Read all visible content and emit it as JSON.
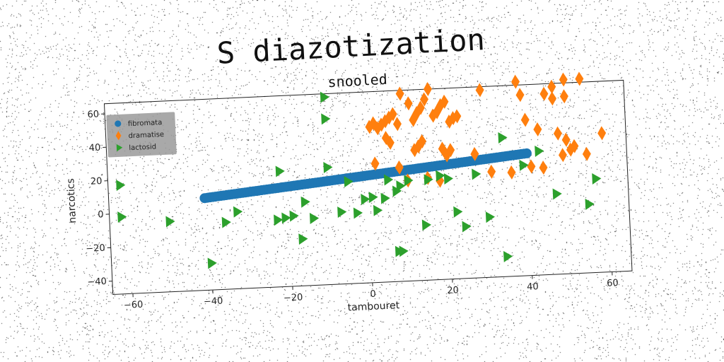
{
  "chart_data": {
    "type": "scatter",
    "title": "S diazotization",
    "subtitle": "snooled",
    "xlabel": "tambouret",
    "ylabel": "narcotics",
    "xlim": [
      -65,
      65
    ],
    "ylim": [
      -48,
      66
    ],
    "xticks": [
      -60,
      -40,
      -20,
      0,
      20,
      40,
      60
    ],
    "yticks": [
      -40,
      -20,
      0,
      20,
      40,
      60
    ],
    "tick_labels_x": [
      "−60",
      "−40",
      "−20",
      "0",
      "20",
      "40",
      "60"
    ],
    "tick_labels_y": [
      "−40",
      "−20",
      "0",
      "20",
      "40",
      "60"
    ],
    "legend": {
      "placement": "top-left",
      "entries": [
        "fibromata",
        "dramatise",
        "lactosid"
      ]
    },
    "colors": {
      "fibromata": "#1f77b4",
      "dramatise": "#ff7f0e",
      "lactosid": "#2ca02c"
    },
    "grid": false,
    "series": [
      {
        "name": "fibromata",
        "marker": "circle",
        "line": {
          "x_start": -41,
          "x_end": 40,
          "y_start": 7,
          "y_end": 25,
          "count": 120
        }
      },
      {
        "name": "dramatise",
        "marker": "thin-diamond",
        "points": [
          [
            1,
            45
          ],
          [
            2,
            47
          ],
          [
            3,
            44
          ],
          [
            4,
            46
          ],
          [
            5,
            48
          ],
          [
            6,
            50
          ],
          [
            7,
            52
          ],
          [
            8,
            46
          ],
          [
            5,
            38
          ],
          [
            6,
            35
          ],
          [
            9,
            64
          ],
          [
            11,
            58
          ],
          [
            12,
            48
          ],
          [
            13,
            52
          ],
          [
            14,
            55
          ],
          [
            15,
            60
          ],
          [
            16,
            66
          ],
          [
            17,
            50
          ],
          [
            18,
            52
          ],
          [
            19,
            56
          ],
          [
            20,
            58
          ],
          [
            21,
            46
          ],
          [
            22,
            48
          ],
          [
            23,
            49
          ],
          [
            12,
            30
          ],
          [
            13,
            32
          ],
          [
            14,
            35
          ],
          [
            19,
            30
          ],
          [
            20,
            26
          ],
          [
            21,
            29
          ],
          [
            2,
            23
          ],
          [
            8,
            20
          ],
          [
            10,
            12
          ],
          [
            15,
            13
          ],
          [
            18,
            11
          ],
          [
            27,
            26
          ],
          [
            29,
            64
          ],
          [
            31,
            15
          ],
          [
            36,
            14
          ],
          [
            38,
            68
          ],
          [
            39,
            60
          ],
          [
            40,
            45
          ],
          [
            41,
            17
          ],
          [
            43,
            39
          ],
          [
            44,
            16
          ],
          [
            45,
            60
          ],
          [
            47,
            64
          ],
          [
            48,
            36
          ],
          [
            49,
            23
          ],
          [
            50,
            32
          ],
          [
            50,
            58
          ],
          [
            51,
            26
          ],
          [
            50,
            68
          ],
          [
            52,
            28
          ],
          [
            55,
            23
          ],
          [
            54,
            68
          ],
          [
            59,
            35
          ],
          [
            47,
            57
          ]
        ]
      },
      {
        "name": "lactosid",
        "marker": "triangle-right",
        "points": [
          [
            -62,
            17
          ],
          [
            -62,
            -2
          ],
          [
            -50,
            -6
          ],
          [
            -40,
            -32
          ],
          [
            -36,
            -8
          ],
          [
            -33,
            -2
          ],
          [
            -22,
            21
          ],
          [
            -23,
            -8
          ],
          [
            -21,
            -7
          ],
          [
            -19,
            -6
          ],
          [
            -17,
            -20
          ],
          [
            -16,
            2
          ],
          [
            -14,
            -8
          ],
          [
            -10,
            64
          ],
          [
            -10,
            51
          ],
          [
            -10,
            22
          ],
          [
            -7,
            -5
          ],
          [
            -5,
            13
          ],
          [
            -3,
            -6
          ],
          [
            -1,
            2
          ],
          [
            1,
            3
          ],
          [
            2,
            -5
          ],
          [
            4,
            2
          ],
          [
            5,
            13
          ],
          [
            7,
            6
          ],
          [
            7,
            -30
          ],
          [
            8,
            -30
          ],
          [
            8,
            9
          ],
          [
            10,
            12
          ],
          [
            14,
            -15
          ],
          [
            15,
            12
          ],
          [
            18,
            14
          ],
          [
            20,
            12
          ],
          [
            22,
            -8
          ],
          [
            24,
            -17
          ],
          [
            27,
            14
          ],
          [
            30,
            -12
          ],
          [
            34,
            35
          ],
          [
            34,
            -36
          ],
          [
            39,
            18
          ],
          [
            43,
            26
          ],
          [
            47,
            0
          ],
          [
            55,
            -7
          ],
          [
            57,
            8
          ]
        ]
      }
    ]
  }
}
